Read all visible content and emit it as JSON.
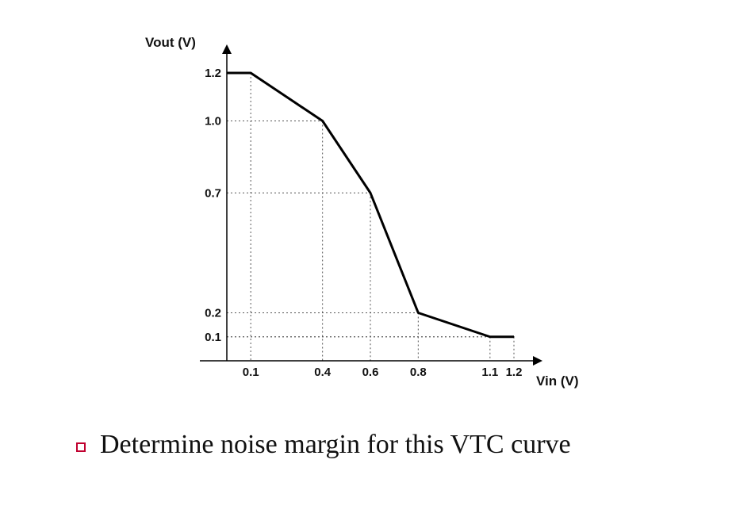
{
  "chart_data": {
    "type": "line",
    "title": "",
    "xlabel": "Vin (V)",
    "ylabel": "Vout (V)",
    "x_ticks": [
      {
        "value": 0.1,
        "label": "0.1"
      },
      {
        "value": 0.4,
        "label": "0.4"
      },
      {
        "value": 0.6,
        "label": "0.6"
      },
      {
        "value": 0.8,
        "label": "0.8"
      },
      {
        "value": 1.1,
        "label": "1.1"
      },
      {
        "value": 1.2,
        "label": "1.2"
      }
    ],
    "y_ticks": [
      {
        "value": 1.2,
        "label": "1.2"
      },
      {
        "value": 1.0,
        "label": "1.0"
      },
      {
        "value": 0.7,
        "label": "0.7"
      },
      {
        "value": 0.2,
        "label": "0.2"
      },
      {
        "value": 0.1,
        "label": "0.1"
      }
    ],
    "series": [
      {
        "points": [
          {
            "x": 0.0,
            "y": 1.2
          },
          {
            "x": 0.1,
            "y": 1.2
          },
          {
            "x": 0.4,
            "y": 1.0
          },
          {
            "x": 0.6,
            "y": 0.7
          },
          {
            "x": 0.8,
            "y": 0.2
          },
          {
            "x": 1.1,
            "y": 0.1
          },
          {
            "x": 1.2,
            "y": 0.1
          }
        ]
      }
    ],
    "xlim": [
      0,
      1.2
    ],
    "ylim": [
      0,
      1.2
    ],
    "grid": "dotted guide lines at marked points",
    "legend": "none",
    "colors": {
      "curve": "#000000",
      "axis": "#000000",
      "guides": "#555555"
    }
  },
  "bullet": {
    "text": "Determine noise margin for this VTC curve",
    "color": "#c0002f"
  }
}
